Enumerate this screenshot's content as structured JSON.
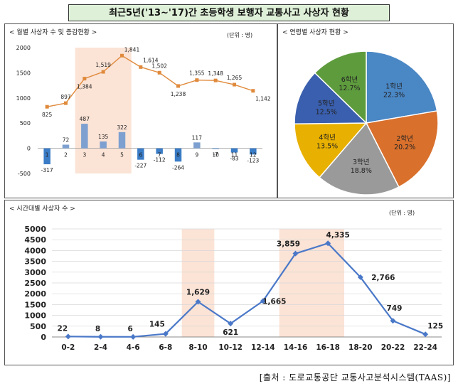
{
  "title": "최근5년('13~'17)간 초등학생 보행자 교통사고 사상자 현황",
  "source": "[출처 : 도로교통공단 교통사고분석시스템(TAAS)]",
  "chart_data": [
    {
      "type": "bar",
      "subtitle": "< 월별 사상자 수 및 증감현황 >",
      "unit": "(단위 : 명)",
      "categories": [
        "1",
        "2",
        "3",
        "4",
        "5",
        "6",
        "7",
        "8",
        "9",
        "10",
        "11",
        "12"
      ],
      "ylim": [
        -500,
        2000
      ],
      "yticks": [
        "-500",
        "0",
        "500",
        "1000",
        "1500",
        "2000"
      ],
      "series": [
        {
          "type": "line",
          "values": [
            825,
            897,
            1384,
            1519,
            1841,
            1614,
            1502,
            1238,
            1355,
            1348,
            1265,
            1142
          ],
          "labels": [
            "825",
            "897",
            "1,384",
            "1,519",
            "1,841",
            "1,614",
            "1,502",
            "1,238",
            "1,355",
            "1,348",
            "1,265",
            "1,142"
          ]
        },
        {
          "type": "bar",
          "values": [
            -317,
            72,
            487,
            135,
            322,
            -227,
            -112,
            -264,
            117,
            -7,
            -83,
            -123
          ],
          "labels": [
            "-317",
            "72",
            "487",
            "135",
            "322",
            "-227",
            "-112",
            "-264",
            "117",
            "-7",
            "-83",
            "-123"
          ]
        }
      ],
      "highlight": [
        "3",
        "5"
      ],
      "colors": {
        "line": "#e08a3c",
        "bar": "#7da0d0",
        "bar_dark": "#3a7cc6",
        "highlight": "#fbe3d6"
      }
    },
    {
      "type": "pie",
      "subtitle": "< 연령별 사상자 현황 >",
      "labels": [
        "1학년",
        "2학년",
        "3학년",
        "4학년",
        "5학년",
        "6학년"
      ],
      "values": [
        22.3,
        20.2,
        18.8,
        13.5,
        12.5,
        12.7
      ],
      "value_labels": [
        "22.3%",
        "20.2%",
        "18.8%",
        "13.5%",
        "12.5%",
        "12.7%"
      ],
      "colors": [
        "#4a87c5",
        "#d9702c",
        "#9a9a9a",
        "#e8b000",
        "#3a5fae",
        "#5e9b3d"
      ]
    },
    {
      "type": "line",
      "subtitle": "< 시간대별 사상자 수 >",
      "unit": "(단위 : 명)",
      "categories": [
        "0-2",
        "2-4",
        "4-6",
        "6-8",
        "8-10",
        "10-12",
        "12-14",
        "14-16",
        "16-18",
        "18-20",
        "20-22",
        "22-24"
      ],
      "values": [
        22,
        8,
        6,
        145,
        1629,
        621,
        1665,
        3859,
        4335,
        2766,
        749,
        125
      ],
      "labels": [
        "22",
        "8",
        "6",
        "145",
        "1,629",
        "621",
        "1,665",
        "3,859",
        "4,335",
        "2,766",
        "749",
        "125"
      ],
      "ylim": [
        0,
        5000
      ],
      "yticks": [
        "0",
        "500",
        "1000",
        "1500",
        "2000",
        "2500",
        "3000",
        "3500",
        "4000",
        "4500",
        "5000"
      ],
      "highlight": [
        "8-10",
        "14-16",
        "16-18"
      ],
      "colors": {
        "line": "#4a78c8",
        "highlight": "#fbe3d6"
      }
    }
  ]
}
